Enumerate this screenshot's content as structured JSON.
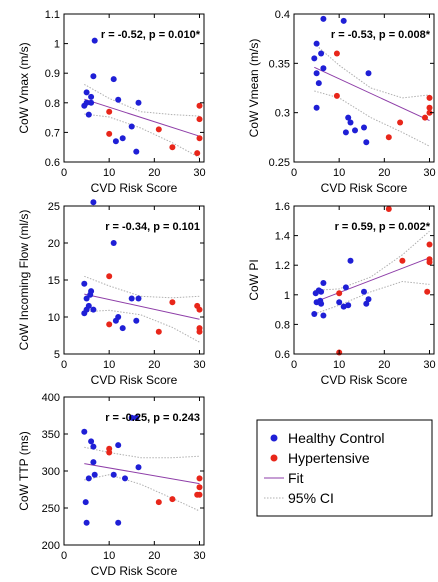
{
  "colors": {
    "healthy": "#1f1fd6",
    "hypertensive": "#e8261a",
    "fit": "#8e3ea8",
    "ci": "#b0b0b0",
    "axis": "#000000"
  },
  "legend": {
    "placement": "bottom-right",
    "entries": [
      "Healthy Control",
      "Hypertensive",
      "Fit",
      "95% CI"
    ]
  },
  "chart_data": [
    {
      "type": "scatter",
      "xlabel": "CVD Risk Score",
      "ylabel": "CoW Vmax (m/s)",
      "stat": "r = -0.52, p = 0.010*",
      "xlim": [
        0,
        31
      ],
      "ylim": [
        0.6,
        1.1
      ],
      "xticks": [
        0,
        10,
        20,
        30
      ],
      "yticks": [
        0.6,
        0.7,
        0.8,
        0.9,
        1.0,
        1.1
      ],
      "ytick_labels": [
        "0.6",
        "0.7",
        "0.8",
        "0.9",
        "1",
        "1.1"
      ],
      "healthy": [
        [
          4.5,
          0.79
        ],
        [
          5,
          0.8
        ],
        [
          5,
          0.835
        ],
        [
          5.5,
          0.76
        ],
        [
          6,
          0.82
        ],
        [
          6,
          0.8
        ],
        [
          6.5,
          0.89
        ],
        [
          6.8,
          1.01
        ],
        [
          11,
          0.88
        ],
        [
          11.5,
          0.67
        ],
        [
          12,
          0.81
        ],
        [
          13,
          0.68
        ],
        [
          15,
          0.72
        ],
        [
          16,
          0.635
        ],
        [
          16.5,
          0.8
        ]
      ],
      "hypertensive": [
        [
          10,
          0.77
        ],
        [
          10,
          0.695
        ],
        [
          21,
          0.71
        ],
        [
          24,
          0.65
        ],
        [
          29.5,
          0.63
        ],
        [
          30,
          0.79
        ],
        [
          30,
          0.745
        ],
        [
          30,
          0.68
        ]
      ],
      "fit": [
        [
          4.5,
          0.812
        ],
        [
          30,
          0.687
        ]
      ],
      "ci_upper": [
        [
          4.5,
          0.862
        ],
        [
          10,
          0.815
        ],
        [
          17,
          0.77
        ],
        [
          24,
          0.76
        ],
        [
          30,
          0.755
        ]
      ],
      "ci_lower": [
        [
          4.5,
          0.762
        ],
        [
          10,
          0.752
        ],
        [
          17,
          0.715
        ],
        [
          24,
          0.665
        ],
        [
          30,
          0.615
        ]
      ]
    },
    {
      "type": "scatter",
      "xlabel": "CVD Risk Score",
      "ylabel": "CoW Vmean (m/s)",
      "stat": "r = -0.53, p = 0.008*",
      "xlim": [
        0,
        31
      ],
      "ylim": [
        0.25,
        0.4
      ],
      "xticks": [
        0,
        10,
        20,
        30
      ],
      "yticks": [
        0.25,
        0.3,
        0.35,
        0.4
      ],
      "ytick_labels": [
        "0.25",
        "0.3",
        "0.35",
        "0.4"
      ],
      "healthy": [
        [
          4.5,
          0.355
        ],
        [
          5,
          0.37
        ],
        [
          5,
          0.34
        ],
        [
          5.5,
          0.33
        ],
        [
          5,
          0.305
        ],
        [
          6,
          0.36
        ],
        [
          6.5,
          0.345
        ],
        [
          6.5,
          0.395
        ],
        [
          11,
          0.393
        ],
        [
          11.5,
          0.28
        ],
        [
          12,
          0.295
        ],
        [
          12.5,
          0.29
        ],
        [
          13.5,
          0.282
        ],
        [
          15.5,
          0.285
        ],
        [
          16,
          0.27
        ],
        [
          16.5,
          0.34
        ]
      ],
      "hypertensive": [
        [
          9.5,
          0.36
        ],
        [
          9.5,
          0.317
        ],
        [
          21,
          0.275
        ],
        [
          23.5,
          0.29
        ],
        [
          29,
          0.295
        ],
        [
          30,
          0.315
        ],
        [
          30,
          0.305
        ],
        [
          30,
          0.3
        ]
      ],
      "fit": [
        [
          4.5,
          0.346
        ],
        [
          30,
          0.292
        ]
      ],
      "ci_upper": [
        [
          4.5,
          0.37
        ],
        [
          10,
          0.348
        ],
        [
          17,
          0.325
        ],
        [
          24,
          0.315
        ],
        [
          30,
          0.318
        ]
      ],
      "ci_lower": [
        [
          4.5,
          0.322
        ],
        [
          10,
          0.315
        ],
        [
          17,
          0.295
        ],
        [
          24,
          0.28
        ],
        [
          30,
          0.266
        ]
      ]
    },
    {
      "type": "scatter",
      "xlabel": "CVD Risk Score",
      "ylabel": "CoW Incoming Flow (ml/s)",
      "stat": "r = -0.34, p = 0.101",
      "xlim": [
        0,
        31
      ],
      "ylim": [
        5,
        25
      ],
      "xticks": [
        0,
        10,
        20,
        30
      ],
      "yticks": [
        5,
        10,
        15,
        20,
        25
      ],
      "ytick_labels": [
        "5",
        "10",
        "15",
        "20",
        "25"
      ],
      "healthy": [
        [
          4.5,
          14.5
        ],
        [
          4.5,
          10.5
        ],
        [
          5,
          11
        ],
        [
          5,
          12.5
        ],
        [
          5.5,
          11.5
        ],
        [
          5.8,
          13
        ],
        [
          6,
          13.5
        ],
        [
          6.5,
          25.5
        ],
        [
          6.5,
          11
        ],
        [
          11,
          20
        ],
        [
          11.5,
          9.5
        ],
        [
          12,
          10
        ],
        [
          13,
          8.5
        ],
        [
          15,
          12.5
        ],
        [
          16,
          9.5
        ],
        [
          16.5,
          12.5
        ]
      ],
      "hypertensive": [
        [
          10,
          15.5
        ],
        [
          10,
          9
        ],
        [
          21,
          8
        ],
        [
          24,
          12
        ],
        [
          29.5,
          11.5
        ],
        [
          30,
          11
        ],
        [
          30,
          8.5
        ],
        [
          30,
          8
        ]
      ],
      "fit": [
        [
          4.5,
          13.1
        ],
        [
          30,
          9.7
        ]
      ],
      "ci_upper": [
        [
          4.5,
          15.5
        ],
        [
          10,
          14.2
        ],
        [
          17,
          12.8
        ],
        [
          24,
          12.6
        ],
        [
          30,
          12.8
        ]
      ],
      "ci_lower": [
        [
          4.5,
          10.7
        ],
        [
          10,
          10.9
        ],
        [
          17,
          10.3
        ],
        [
          24,
          8.6
        ],
        [
          30,
          6.6
        ]
      ]
    },
    {
      "type": "scatter",
      "xlabel": "CVD Risk Score",
      "ylabel": "CoW PI",
      "stat": "r = 0.59, p = 0.002*",
      "xlim": [
        0,
        31
      ],
      "ylim": [
        0.6,
        1.6
      ],
      "xticks": [
        0,
        10,
        20,
        30
      ],
      "yticks": [
        0.6,
        0.8,
        1.0,
        1.2,
        1.4,
        1.6
      ],
      "ytick_labels": [
        "0.6",
        "0.8",
        "1",
        "1.2",
        "1.4",
        "1.6"
      ],
      "healthy": [
        [
          4.5,
          0.87
        ],
        [
          4.8,
          1.01
        ],
        [
          5,
          0.95
        ],
        [
          5.5,
          1.03
        ],
        [
          5.8,
          0.96
        ],
        [
          6,
          1.02
        ],
        [
          6,
          0.94
        ],
        [
          6.5,
          1.08
        ],
        [
          6.5,
          0.86
        ],
        [
          10,
          0.95
        ],
        [
          11,
          0.92
        ],
        [
          11.5,
          1.05
        ],
        [
          12,
          0.93
        ],
        [
          12.5,
          1.23
        ],
        [
          15.5,
          1.02
        ],
        [
          16,
          0.94
        ],
        [
          16.5,
          0.97
        ]
      ],
      "hypertensive": [
        [
          10,
          1.01
        ],
        [
          10,
          0.61
        ],
        [
          21,
          1.58
        ],
        [
          24,
          1.23
        ],
        [
          29.5,
          1.02
        ],
        [
          30,
          1.34
        ],
        [
          30,
          1.22
        ],
        [
          30,
          1.24
        ]
      ],
      "fit": [
        [
          4.5,
          0.95
        ],
        [
          30,
          1.25
        ]
      ],
      "ci_upper": [
        [
          4.5,
          1.03
        ],
        [
          10,
          1.04
        ],
        [
          17,
          1.12
        ],
        [
          24,
          1.27
        ],
        [
          30,
          1.43
        ]
      ],
      "ci_lower": [
        [
          4.5,
          0.87
        ],
        [
          10,
          0.93
        ],
        [
          17,
          1.02
        ],
        [
          24,
          1.09
        ],
        [
          30,
          1.07
        ]
      ]
    },
    {
      "type": "scatter",
      "xlabel": "CVD Risk Score",
      "ylabel": "CoW TTP (ms)",
      "stat": "r = -0.25, p = 0.243",
      "xlim": [
        0,
        31
      ],
      "ylim": [
        200,
        400
      ],
      "xticks": [
        0,
        10,
        20,
        30
      ],
      "yticks": [
        200,
        250,
        300,
        350,
        400
      ],
      "ytick_labels": [
        "200",
        "250",
        "300",
        "350",
        "400"
      ],
      "healthy": [
        [
          4.5,
          353
        ],
        [
          4.8,
          258
        ],
        [
          5,
          230
        ],
        [
          5.5,
          290
        ],
        [
          6,
          340
        ],
        [
          6.5,
          333
        ],
        [
          6.5,
          312
        ],
        [
          6.8,
          295
        ],
        [
          11,
          295
        ],
        [
          12,
          230
        ],
        [
          12,
          335
        ],
        [
          13.5,
          290
        ],
        [
          15,
          372
        ],
        [
          16,
          372
        ],
        [
          16.5,
          305
        ]
      ],
      "hypertensive": [
        [
          10,
          330
        ],
        [
          10,
          325
        ],
        [
          21,
          258
        ],
        [
          24,
          262
        ],
        [
          29.5,
          268
        ],
        [
          30,
          290
        ],
        [
          30,
          278
        ],
        [
          30,
          268
        ]
      ],
      "fit": [
        [
          4.5,
          310
        ],
        [
          30,
          283
        ]
      ],
      "ci_upper": [
        [
          4.5,
          332
        ],
        [
          10,
          325
        ],
        [
          17,
          318
        ],
        [
          24,
          318
        ],
        [
          30,
          320
        ]
      ],
      "ci_lower": [
        [
          4.5,
          288
        ],
        [
          10,
          295
        ],
        [
          17,
          282
        ],
        [
          24,
          263
        ],
        [
          30,
          246
        ]
      ]
    }
  ]
}
